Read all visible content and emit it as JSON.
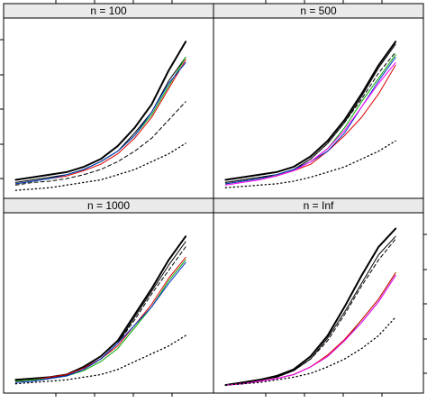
{
  "chart_data": {
    "type": "line",
    "layout": "2x2 panels",
    "x": [
      1,
      2,
      3,
      4,
      5,
      6,
      7,
      8,
      9,
      10,
      11
    ],
    "panel_fill_color": "#eaeaea",
    "panels": [
      {
        "title": "n = 100",
        "series": [
          {
            "color": "#000000",
            "dash": "solid",
            "width": 2.0,
            "values": [
              5,
              6,
              7,
              8,
              10,
              13,
              18,
              25,
              34,
              47,
              58
            ]
          },
          {
            "color": "#000000",
            "dash": "solid",
            "width": 1.0,
            "values": [
              4,
              5,
              6,
              7,
              9,
              12,
              16,
              23,
              31,
              43,
              52
            ]
          },
          {
            "color": "#dd0000",
            "dash": "solid",
            "width": 1.0,
            "values": [
              3.5,
              4.5,
              5.5,
              6.5,
              8.5,
              11,
              15,
              21,
              29,
              40,
              51
            ]
          },
          {
            "color": "#00aa00",
            "dash": "solid",
            "width": 1.0,
            "values": [
              3.5,
              4.5,
              5.5,
              7,
              9,
              12,
              16,
              22,
              30,
              41,
              52
            ]
          },
          {
            "color": "#0033cc",
            "dash": "solid",
            "width": 1.0,
            "values": [
              3.5,
              4.5,
              5.5,
              7,
              9,
              12,
              16,
              22,
              31,
              42,
              50
            ]
          },
          {
            "color": "#000000",
            "dash": "dashed",
            "width": 1.0,
            "values": [
              3,
              4,
              4.5,
              5.5,
              7,
              9,
              12,
              16,
              21,
              28,
              35
            ]
          },
          {
            "color": "#000000",
            "dash": "dotted",
            "width": 1.3,
            "values": [
              1,
              1.5,
              2,
              3,
              4,
              5,
              7,
              9,
              12,
              15,
              19
            ]
          }
        ]
      },
      {
        "title": "n = 500",
        "series": [
          {
            "color": "#000000",
            "dash": "solid",
            "width": 2.0,
            "values": [
              5,
              6,
              7,
              8,
              10,
              14,
              20,
              28,
              38,
              49,
              58
            ]
          },
          {
            "color": "#000000",
            "dash": "solid",
            "width": 1.0,
            "values": [
              4,
              5,
              6,
              7,
              9,
              13,
              19,
              27,
              37,
              48,
              57
            ]
          },
          {
            "color": "#000000",
            "dash": "dashed",
            "width": 1.0,
            "values": [
              4,
              5,
              6,
              7,
              9,
              13,
              19,
              27,
              36,
              46,
              54
            ]
          },
          {
            "color": "#dd0000",
            "dash": "solid",
            "width": 1.0,
            "values": [
              3.5,
              4.5,
              5.5,
              6.5,
              8.5,
              11,
              16,
              22,
              29,
              38,
              49
            ]
          },
          {
            "color": "#00aa00",
            "dash": "solid",
            "width": 1.0,
            "values": [
              3.5,
              4.5,
              5.5,
              7,
              9,
              12,
              17,
              25,
              35,
              44,
              53
            ]
          },
          {
            "color": "#0033cc",
            "dash": "solid",
            "width": 1.0,
            "values": [
              3.5,
              4.5,
              5.5,
              7,
              9,
              12,
              16,
              23,
              33,
              43,
              52
            ]
          },
          {
            "color": "#ff00ff",
            "dash": "solid",
            "width": 1.0,
            "values": [
              3,
              4,
              5,
              6.5,
              8.5,
              12,
              17,
              24,
              33,
              42,
              50
            ]
          },
          {
            "color": "#000000",
            "dash": "dotted",
            "width": 1.3,
            "values": [
              2,
              2.5,
              3,
              3.5,
              4.5,
              6,
              8,
              10,
              13,
              16,
              20
            ]
          }
        ]
      },
      {
        "title": "n = 1000",
        "series": [
          {
            "color": "#000000",
            "dash": "solid",
            "width": 2.0,
            "values": [
              3,
              3.5,
              4,
              5,
              8,
              12,
              18,
              28,
              38,
              49,
              58
            ]
          },
          {
            "color": "#000000",
            "dash": "solid",
            "width": 1.0,
            "values": [
              2.5,
              3,
              4,
              5,
              7.5,
              11,
              17,
              27,
              37,
              47,
              56
            ]
          },
          {
            "color": "#000000",
            "dash": "dashed",
            "width": 1.0,
            "values": [
              2,
              2.5,
              3.5,
              4.5,
              7,
              11,
              17,
              26,
              36,
              45,
              54
            ]
          },
          {
            "color": "#dd0000",
            "dash": "solid",
            "width": 1.0,
            "values": [
              2.5,
              3,
              4,
              5,
              7.5,
              11,
              16,
              24,
              32,
              42,
              50
            ]
          },
          {
            "color": "#00aa00",
            "dash": "solid",
            "width": 1.0,
            "values": [
              2.5,
              3,
              3.5,
              4.5,
              6.5,
              10,
              15,
              23,
              31,
              41,
              49
            ]
          },
          {
            "color": "#0033cc",
            "dash": "solid",
            "width": 1.0,
            "values": [
              2,
              2.5,
              3.5,
              4.5,
              7,
              11,
              17,
              24,
              31,
              40,
              48
            ]
          },
          {
            "color": "#000000",
            "dash": "dotted",
            "width": 1.3,
            "values": [
              1.5,
              2,
              2.5,
              3,
              4,
              5,
              7,
              10,
              13,
              16,
              20
            ]
          }
        ]
      },
      {
        "title": "n = Inf",
        "series": [
          {
            "color": "#000000",
            "dash": "solid",
            "width": 2.0,
            "values": [
              1,
              2,
              3,
              4.5,
              7,
              12,
              20,
              31,
              43,
              54,
              61
            ]
          },
          {
            "color": "#000000",
            "dash": "solid",
            "width": 1.0,
            "values": [
              1,
              2,
              3,
              4,
              6.5,
              11,
              19,
              29,
              40,
              51,
              58
            ]
          },
          {
            "color": "#000000",
            "dash": "dashed",
            "width": 1.0,
            "values": [
              1,
              2,
              3,
              4,
              6.5,
              11,
              18,
              28,
              39,
              49,
              57
            ]
          },
          {
            "color": "#0033cc",
            "dash": "solid",
            "width": 1.0,
            "values": [
              1,
              1.5,
              2.5,
              3.5,
              5,
              8,
              12,
              18,
              25,
              33,
              43
            ]
          },
          {
            "color": "#00aa00",
            "dash": "solid",
            "width": 1.0,
            "values": [
              1,
              1.5,
              2.5,
              3.5,
              5,
              8,
              12,
              18,
              26,
              34,
              44
            ]
          },
          {
            "color": "#dd0000",
            "dash": "solid",
            "width": 1.0,
            "values": [
              1,
              1.5,
              2.5,
              3.5,
              5,
              8,
              12.5,
              18.5,
              26,
              34,
              44
            ]
          },
          {
            "color": "#ff00ff",
            "dash": "solid",
            "width": 1.0,
            "values": [
              1,
              1.5,
              2.5,
              3.5,
              5,
              8,
              12,
              18,
              25,
              33,
              43
            ]
          },
          {
            "color": "#000000",
            "dash": "dotted",
            "width": 1.3,
            "values": [
              1,
              1.5,
              2,
              3,
              4,
              5.5,
              8,
              11,
              15,
              20,
              27
            ]
          }
        ]
      }
    ],
    "xlim": [
      0.5,
      12
    ],
    "ylim": [
      0,
      65
    ],
    "xlabel": "",
    "ylabel": "",
    "grid": false,
    "legend": "none"
  }
}
